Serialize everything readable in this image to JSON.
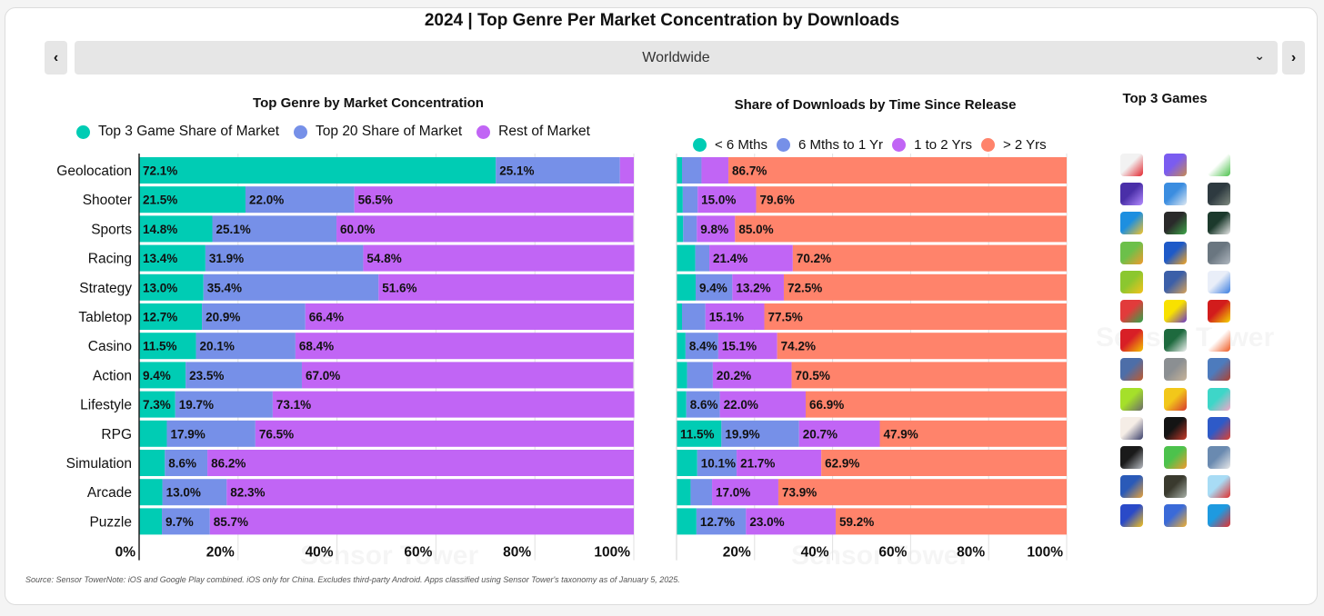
{
  "header": {
    "title": "2024 | Top Genre Per Market Concentration by Downloads",
    "prev_icon": "chevron-left-icon",
    "next_icon": "chevron-right-icon",
    "prev_glyph": "‹",
    "next_glyph": "›",
    "region_selected": "Worldwide",
    "dropdown_glyph": "⌄"
  },
  "colors": {
    "teal": "#00ccb4",
    "blue": "#7690e8",
    "purple": "#c165f5",
    "salmon": "#ff836b"
  },
  "chart_data": [
    {
      "type": "bar",
      "orientation": "horizontal",
      "stacked": true,
      "title": "Top Genre by Market Concentration",
      "categories": [
        "Geolocation",
        "Shooter",
        "Sports",
        "Racing",
        "Strategy",
        "Tabletop",
        "Casino",
        "Action",
        "Lifestyle",
        "RPG",
        "Simulation",
        "Arcade",
        "Puzzle"
      ],
      "series": [
        {
          "name": "Top 3 Game Share of Market",
          "color": "#00ccb4",
          "values": [
            72.1,
            21.5,
            14.8,
            13.4,
            13.0,
            12.7,
            11.5,
            9.4,
            7.3,
            5.6,
            5.2,
            4.7,
            4.6
          ],
          "labeled": [
            true,
            true,
            true,
            true,
            true,
            true,
            true,
            true,
            true,
            false,
            false,
            false,
            false
          ]
        },
        {
          "name": "Top 20 Share of Market",
          "color": "#7690e8",
          "values": [
            25.1,
            22.0,
            25.1,
            31.9,
            35.4,
            20.9,
            20.1,
            23.5,
            19.7,
            17.9,
            8.6,
            13.0,
            9.7
          ],
          "labeled": [
            true,
            true,
            true,
            true,
            true,
            true,
            true,
            true,
            true,
            true,
            true,
            true,
            true
          ]
        },
        {
          "name": "Rest of Market",
          "color": "#c165f5",
          "values": [
            2.8,
            56.5,
            60.0,
            54.8,
            51.6,
            66.4,
            68.4,
            67.0,
            73.1,
            76.5,
            86.2,
            82.3,
            85.7
          ],
          "labeled": [
            false,
            true,
            true,
            true,
            true,
            true,
            true,
            true,
            true,
            true,
            true,
            true,
            true
          ]
        }
      ],
      "xlim": [
        0,
        100
      ],
      "xticks": [
        "0%",
        "20%",
        "40%",
        "60%",
        "80%",
        "100%"
      ],
      "legend": "top",
      "grid": true
    },
    {
      "type": "bar",
      "orientation": "horizontal",
      "stacked": true,
      "title": "Share of Downloads by Time Since Release",
      "categories": [
        "Geolocation",
        "Shooter",
        "Sports",
        "Racing",
        "Strategy",
        "Tabletop",
        "Casino",
        "Action",
        "Lifestyle",
        "RPG",
        "Simulation",
        "Arcade",
        "Puzzle"
      ],
      "series": [
        {
          "name": "< 6 Mths",
          "color": "#00ccb4",
          "values": [
            1.4,
            1.6,
            1.7,
            4.8,
            4.9,
            1.4,
            2.3,
            2.7,
            2.5,
            11.5,
            5.3,
            3.6,
            5.1
          ],
          "labeled": [
            false,
            false,
            false,
            false,
            false,
            false,
            false,
            false,
            false,
            true,
            false,
            false,
            false
          ]
        },
        {
          "name": "6 Mths to 1 Yr",
          "color": "#7690e8",
          "values": [
            5.0,
            3.8,
            3.5,
            3.6,
            9.4,
            6.0,
            8.4,
            6.6,
            8.6,
            19.9,
            10.1,
            5.5,
            12.7
          ],
          "labeled": [
            false,
            false,
            false,
            false,
            true,
            false,
            true,
            false,
            true,
            true,
            true,
            false,
            true
          ]
        },
        {
          "name": "1 to 2 Yrs",
          "color": "#c165f5",
          "values": [
            6.9,
            15.0,
            9.8,
            21.4,
            13.2,
            15.1,
            15.1,
            20.2,
            22.0,
            20.7,
            21.7,
            17.0,
            23.0
          ],
          "labeled": [
            false,
            true,
            true,
            true,
            true,
            true,
            true,
            true,
            true,
            true,
            true,
            true,
            true
          ]
        },
        {
          "name": "> 2 Yrs",
          "color": "#ff836b",
          "values": [
            86.7,
            79.6,
            85.0,
            70.2,
            72.5,
            77.5,
            74.2,
            70.5,
            66.9,
            47.9,
            62.9,
            73.9,
            59.2
          ],
          "labeled": [
            true,
            true,
            true,
            true,
            true,
            true,
            true,
            true,
            true,
            true,
            true,
            true,
            true
          ]
        }
      ],
      "xlim": [
        0,
        100
      ],
      "xticks": [
        "",
        "20%",
        "40%",
        "60%",
        "80%",
        "100%"
      ],
      "legend": "top",
      "grid": true
    }
  ],
  "games": {
    "title": "Top 3 Games",
    "rows": [
      {
        "genre": "Geolocation",
        "icons": [
          [
            "#f2f2f2",
            "#e3262e"
          ],
          [
            "#7a5cf0",
            "#c88a52"
          ],
          [
            "#ffffff",
            "#4cc24c"
          ]
        ]
      },
      {
        "genre": "Shooter",
        "icons": [
          [
            "#4a2fa8",
            "#b48cff"
          ],
          [
            "#3b8de0",
            "#dfe9f2"
          ],
          [
            "#2e3a40",
            "#7f8a80"
          ]
        ]
      },
      {
        "genre": "Sports",
        "icons": [
          [
            "#1d8fe0",
            "#f5c32a"
          ],
          [
            "#2a2a2a",
            "#3fa64a"
          ],
          [
            "#1c3a2c",
            "#e8e8e8"
          ]
        ]
      },
      {
        "genre": "Racing",
        "icons": [
          [
            "#6cc04a",
            "#f29a2e"
          ],
          [
            "#1e5ac8",
            "#f5a623"
          ],
          [
            "#6a7680",
            "#b0b8c0"
          ]
        ]
      },
      {
        "genre": "Strategy",
        "icons": [
          [
            "#8bc72f",
            "#f5c21b"
          ],
          [
            "#3c5fa8",
            "#d8a35a"
          ],
          [
            "#e9eef8",
            "#3a7de0"
          ]
        ]
      },
      {
        "genre": "Tabletop",
        "icons": [
          [
            "#e23b3b",
            "#2ea84a"
          ],
          [
            "#f8e100",
            "#6b38c8"
          ],
          [
            "#d21c1c",
            "#f5d800"
          ]
        ]
      },
      {
        "genre": "Casino",
        "icons": [
          [
            "#d81f26",
            "#f4c400"
          ],
          [
            "#1e6a3e",
            "#f2f2f2"
          ],
          [
            "#ffffff",
            "#f05a22"
          ]
        ]
      },
      {
        "genre": "Action",
        "icons": [
          [
            "#4d6ea8",
            "#c05a2e"
          ],
          [
            "#8b8f92",
            "#c8b49a"
          ],
          [
            "#4d7bbd",
            "#b0402e"
          ]
        ]
      },
      {
        "genre": "Lifestyle",
        "icons": [
          [
            "#a5e02a",
            "#6b6b6b"
          ],
          [
            "#f2c71a",
            "#d83a2e"
          ],
          [
            "#3ed6c8",
            "#f5a6c8"
          ]
        ]
      },
      {
        "genre": "RPG",
        "icons": [
          [
            "#f5ede6",
            "#3a3f6a"
          ],
          [
            "#141414",
            "#c83a2a"
          ],
          [
            "#2e5ac8",
            "#e0402e"
          ]
        ]
      },
      {
        "genre": "Simulation",
        "icons": [
          [
            "#1a1a1a",
            "#b8bcc2"
          ],
          [
            "#4cc24c",
            "#f29a2e"
          ],
          [
            "#6a8ab0",
            "#e8e8e8"
          ]
        ]
      },
      {
        "genre": "Arcade",
        "icons": [
          [
            "#2a5ab8",
            "#e8a23a"
          ],
          [
            "#3a3a2e",
            "#a8b0a8"
          ],
          [
            "#a8dcf5",
            "#e0302e"
          ]
        ]
      },
      {
        "genre": "Puzzle",
        "icons": [
          [
            "#2a4ac8",
            "#f5c21b"
          ],
          [
            "#3a6ad8",
            "#f2b030"
          ],
          [
            "#1e9ae0",
            "#e8302e"
          ]
        ]
      }
    ]
  },
  "footer": {
    "note": "Source: Sensor TowerNote: iOS and Google Play combined. iOS only for China. Excludes third-party Android. Apps classified using Sensor Tower's taxonomy as of January 5, 2025."
  },
  "watermark": "Sensor Tower"
}
